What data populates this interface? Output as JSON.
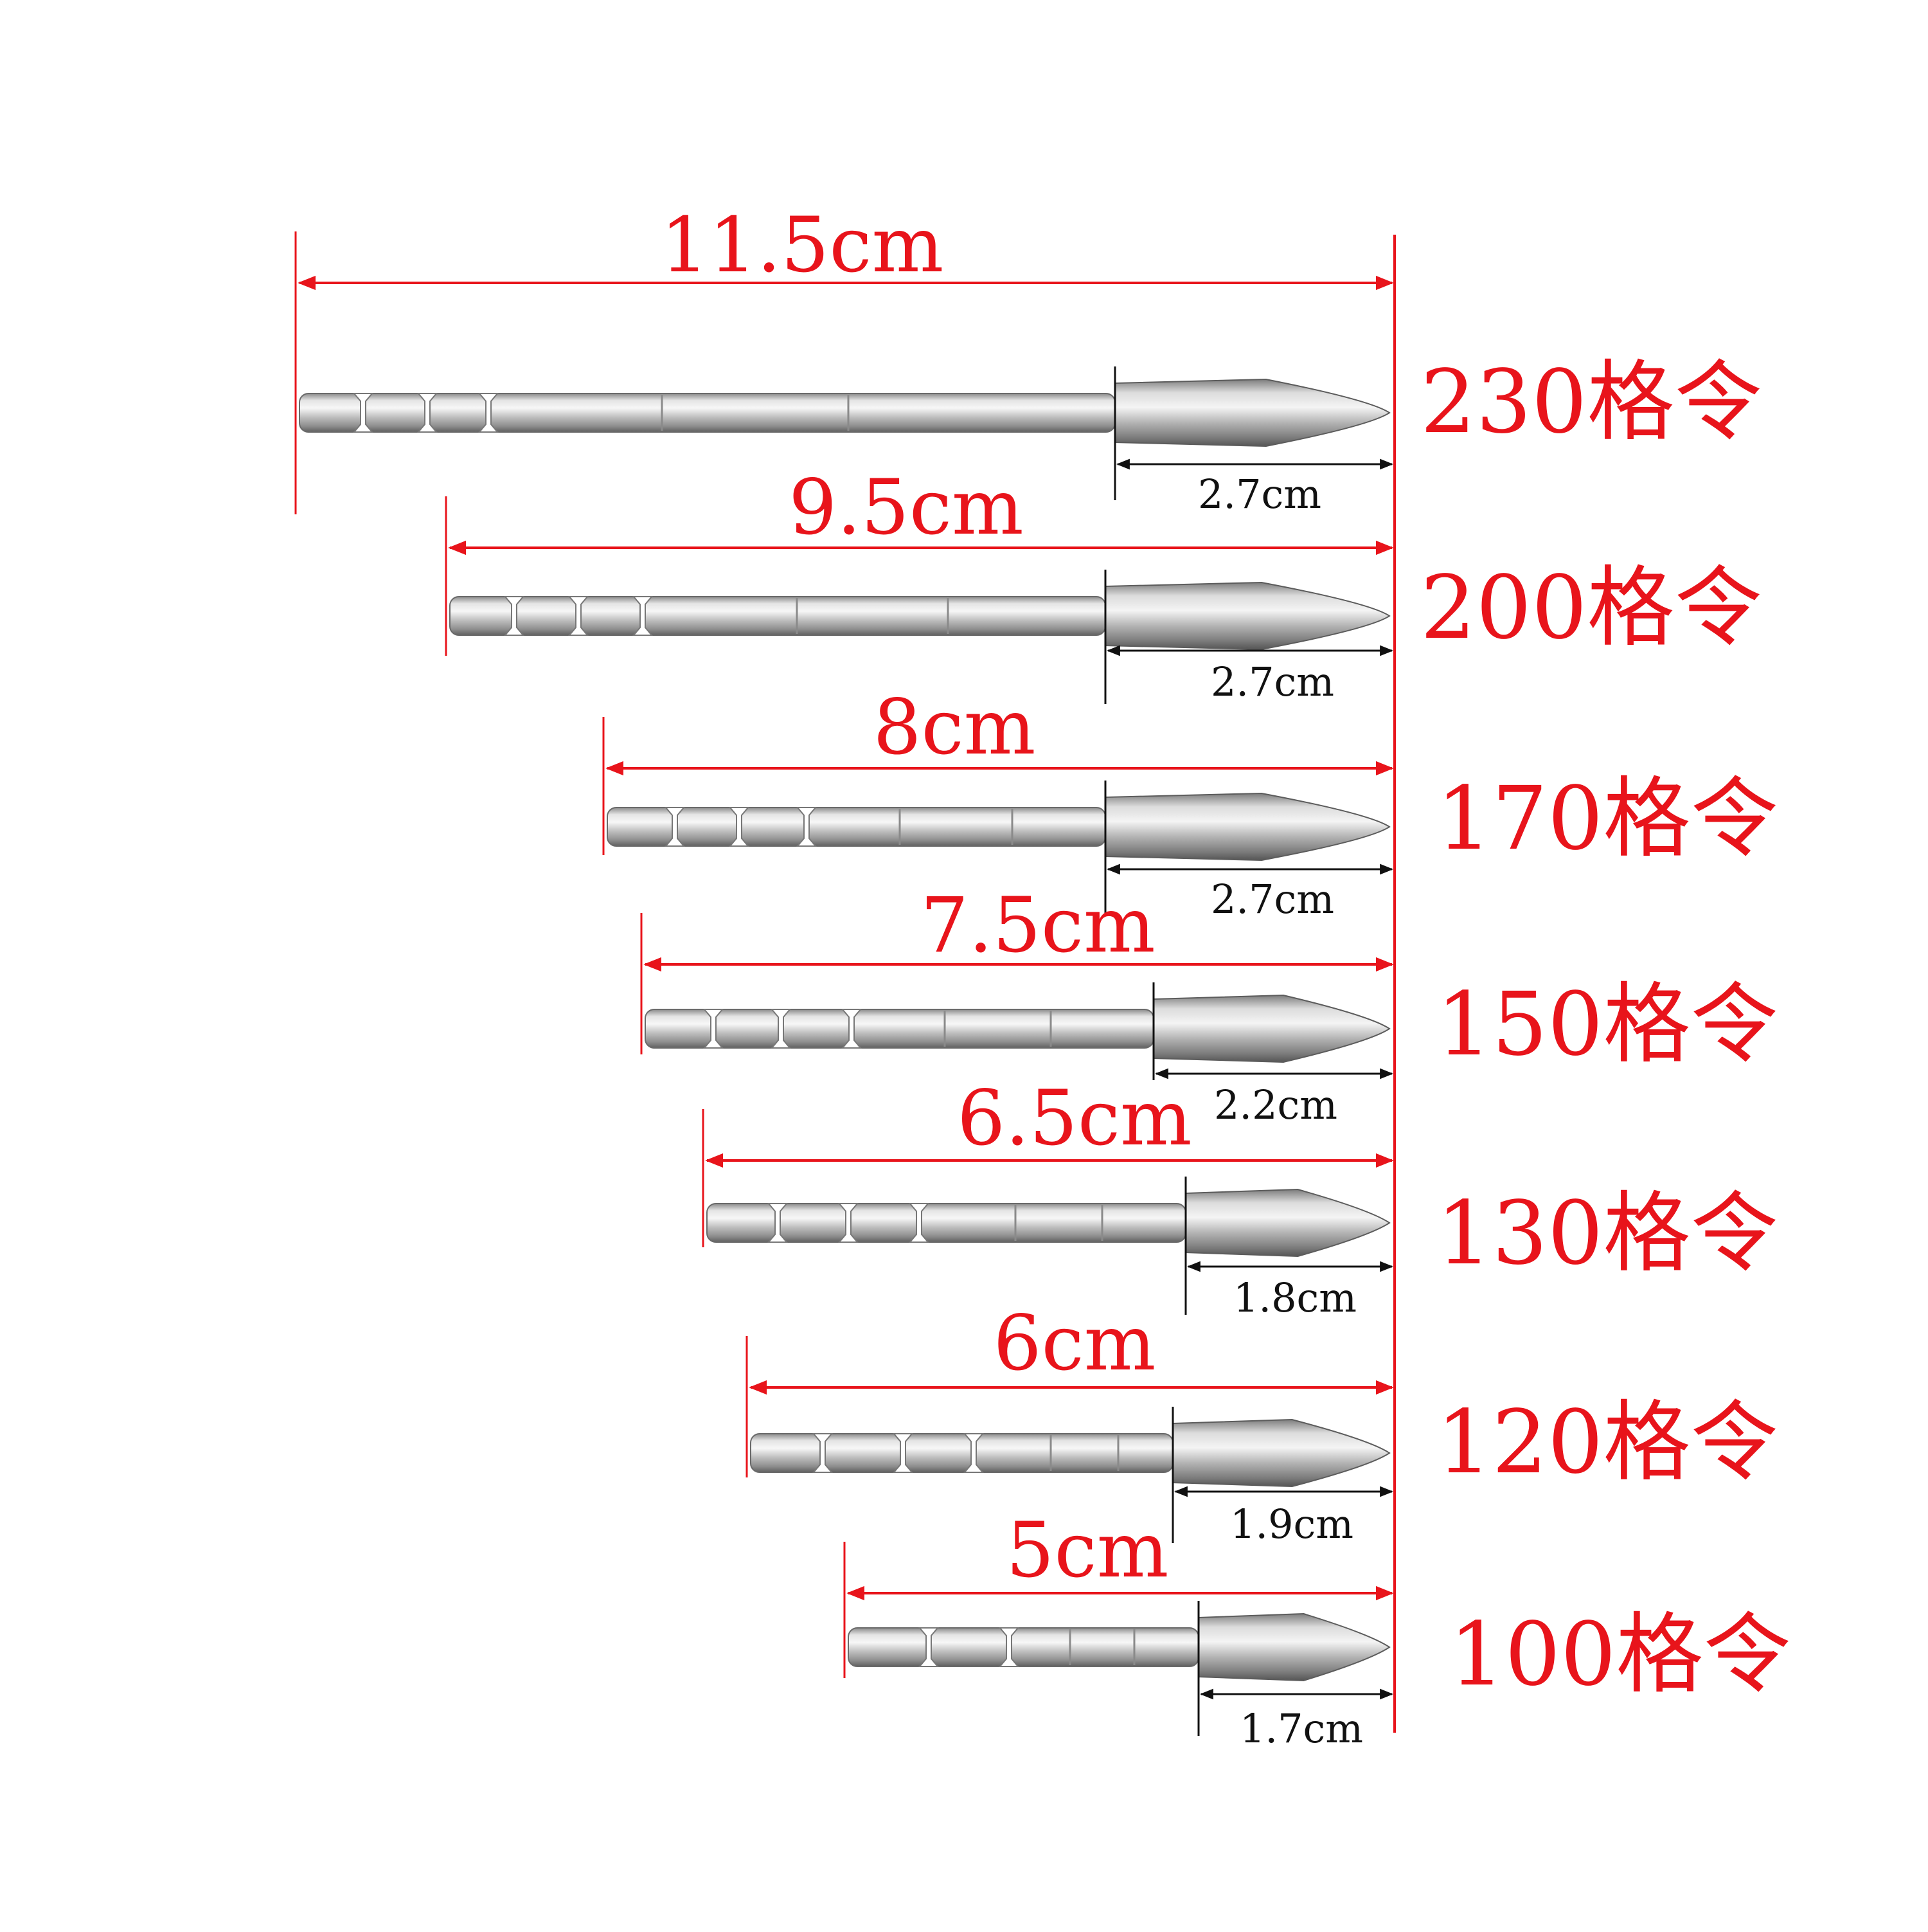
{
  "colors": {
    "background": "#ffffff",
    "dimension_red": "#e8141b",
    "dimension_black": "#111111",
    "metal_light": "#ececec",
    "metal_mid": "#b9b9b9",
    "metal_dark": "#6e6e6e"
  },
  "points": [
    {
      "id": "p230",
      "grain_label": "230格令",
      "total_length": "11.5cm",
      "tip_length": "2.7cm"
    },
    {
      "id": "p200",
      "grain_label": "200格令",
      "total_length": "9.5cm",
      "tip_length": "2.7cm"
    },
    {
      "id": "p170",
      "grain_label": "170格令",
      "total_length": "8cm",
      "tip_length": "2.7cm"
    },
    {
      "id": "p150",
      "grain_label": "150格令",
      "total_length": "7.5cm",
      "tip_length": "2.2cm"
    },
    {
      "id": "p130",
      "grain_label": "130格令",
      "total_length": "6.5cm",
      "tip_length": "1.8cm"
    },
    {
      "id": "p120",
      "grain_label": "120格令",
      "total_length": "6cm",
      "tip_length": "1.9cm"
    },
    {
      "id": "p100",
      "grain_label": "100格令",
      "total_length": "5cm",
      "tip_length": "1.7cm"
    }
  ]
}
